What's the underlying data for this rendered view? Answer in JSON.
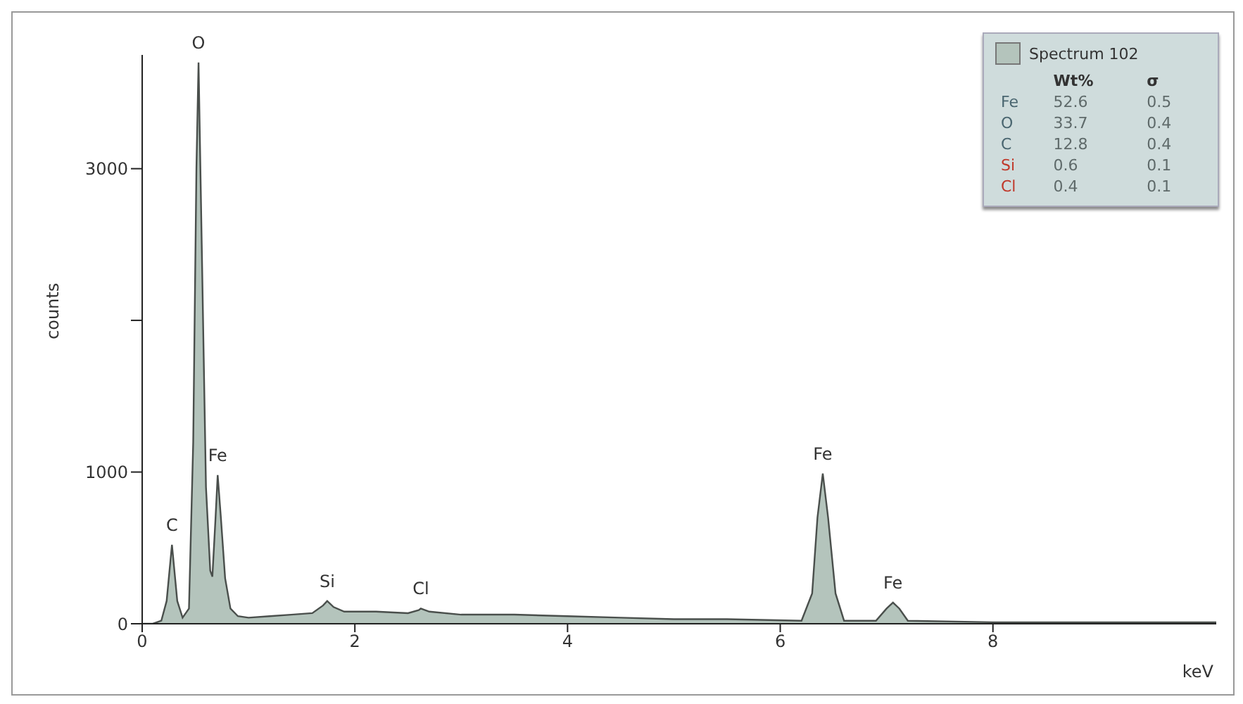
{
  "chart_data": {
    "type": "area",
    "xlabel": "keV",
    "ylabel": "counts",
    "x": [
      0,
      0.1,
      0.18,
      0.23,
      0.28,
      0.33,
      0.38,
      0.44,
      0.48,
      0.51,
      0.53,
      0.56,
      0.6,
      0.64,
      0.66,
      0.69,
      0.71,
      0.74,
      0.78,
      0.83,
      0.9,
      1.0,
      1.2,
      1.4,
      1.6,
      1.7,
      1.74,
      1.8,
      1.9,
      2.2,
      2.5,
      2.6,
      2.62,
      2.7,
      3.0,
      3.5,
      4.0,
      4.5,
      5.0,
      5.5,
      6.2,
      6.3,
      6.35,
      6.4,
      6.45,
      6.52,
      6.6,
      6.9,
      7.0,
      7.06,
      7.12,
      7.2,
      8,
      9,
      10.1
    ],
    "series": [
      {
        "name": "Spectrum 102",
        "color": "#b4c4bc",
        "values": [
          0,
          0,
          20,
          150,
          520,
          150,
          40,
          100,
          1200,
          3000,
          3700,
          2500,
          900,
          350,
          310,
          700,
          980,
          700,
          300,
          100,
          50,
          40,
          50,
          60,
          70,
          120,
          150,
          110,
          80,
          80,
          70,
          90,
          100,
          80,
          60,
          60,
          50,
          40,
          30,
          30,
          20,
          200,
          700,
          990,
          700,
          200,
          20,
          20,
          100,
          140,
          100,
          20,
          10,
          10,
          10
        ]
      }
    ],
    "xlim": [
      0,
      10.1
    ],
    "xticks": [
      0,
      2,
      4,
      6,
      8
    ],
    "ylim": [
      0,
      3750
    ],
    "yticks": [
      0,
      1000,
      {
        "value": 2000,
        "label": null
      },
      3000
    ],
    "grid": false,
    "legend": "top right",
    "annotations": [
      {
        "text": "C",
        "x": 0.28,
        "y": 520
      },
      {
        "text": "O",
        "x": 0.53,
        "y": 3700
      },
      {
        "text": "Fe",
        "x": 0.71,
        "y": 980
      },
      {
        "text": "Si",
        "x": 1.74,
        "y": 150
      },
      {
        "text": "Cl",
        "x": 2.62,
        "y": 100
      },
      {
        "text": "Fe",
        "x": 6.4,
        "y": 990
      },
      {
        "text": "Fe",
        "x": 7.06,
        "y": 140
      },
      "Wt%",
      "σ",
      "Fe",
      "52.6",
      "0.5",
      "O",
      "33.7",
      "0.4",
      "C",
      "12.8",
      "0.4",
      "Si",
      "0.6",
      "0.1",
      "Cl",
      "0.4",
      "0.1"
    ]
  }
}
